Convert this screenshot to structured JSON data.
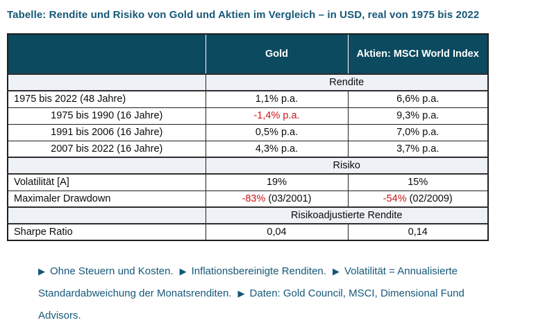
{
  "title": "Tabelle: Rendite und Risiko von Gold und Aktien im Vergleich – in USD, real von 1975 bis 2022",
  "colors": {
    "header_bg": "#0c4a5f",
    "accent_text": "#155878",
    "negative_red": "#c9141a",
    "section_row_bg": "#eef1f5"
  },
  "table": {
    "columns": {
      "period": "",
      "gold": "Gold",
      "aktien": "Aktien: MSCI World Index"
    },
    "sections": [
      {
        "title": "Rendite",
        "rows": [
          {
            "label": "1975 bis 2022 (48 Jahre)",
            "gold": "1,1% p.a.",
            "aktien": "6,6% p.a."
          },
          {
            "label": "1975 bis 1990 (16 Jahre)",
            "gold": "-1,4% p.a.",
            "aktien": "9,3% p.a."
          },
          {
            "label": "1991 bis 2006 (16 Jahre)",
            "gold": "0,5% p.a.",
            "aktien": "7,0% p.a."
          },
          {
            "label": "2007 bis 2022 (16 Jahre)",
            "gold": "4,3% p.a.",
            "aktien": "3,7% p.a."
          }
        ]
      },
      {
        "title": "Risiko",
        "rows": [
          {
            "label": "Volatilität [A]",
            "gold": "19%",
            "aktien": "15%"
          },
          {
            "label": "Maximaler Drawdown",
            "gold_red": "-83%",
            "gold_rest": " (03/2001)",
            "aktien_red": "-54%",
            "aktien_rest": " (02/2009)"
          }
        ]
      },
      {
        "title": "Risikoadjustierte Rendite",
        "rows": [
          {
            "label": "Sharpe Ratio",
            "gold": "0,04",
            "aktien": "0,14"
          }
        ]
      }
    ]
  },
  "footnote": {
    "marker": "▶",
    "items": [
      "Ohne Steuern und Kosten.",
      "Inflationsbereinigte Renditen.",
      "Volatilität = Annualisierte Standardabweichung der Monatsrenditen.",
      "Daten: Gold Council, MSCI, Dimensional Fund Advisors."
    ]
  }
}
